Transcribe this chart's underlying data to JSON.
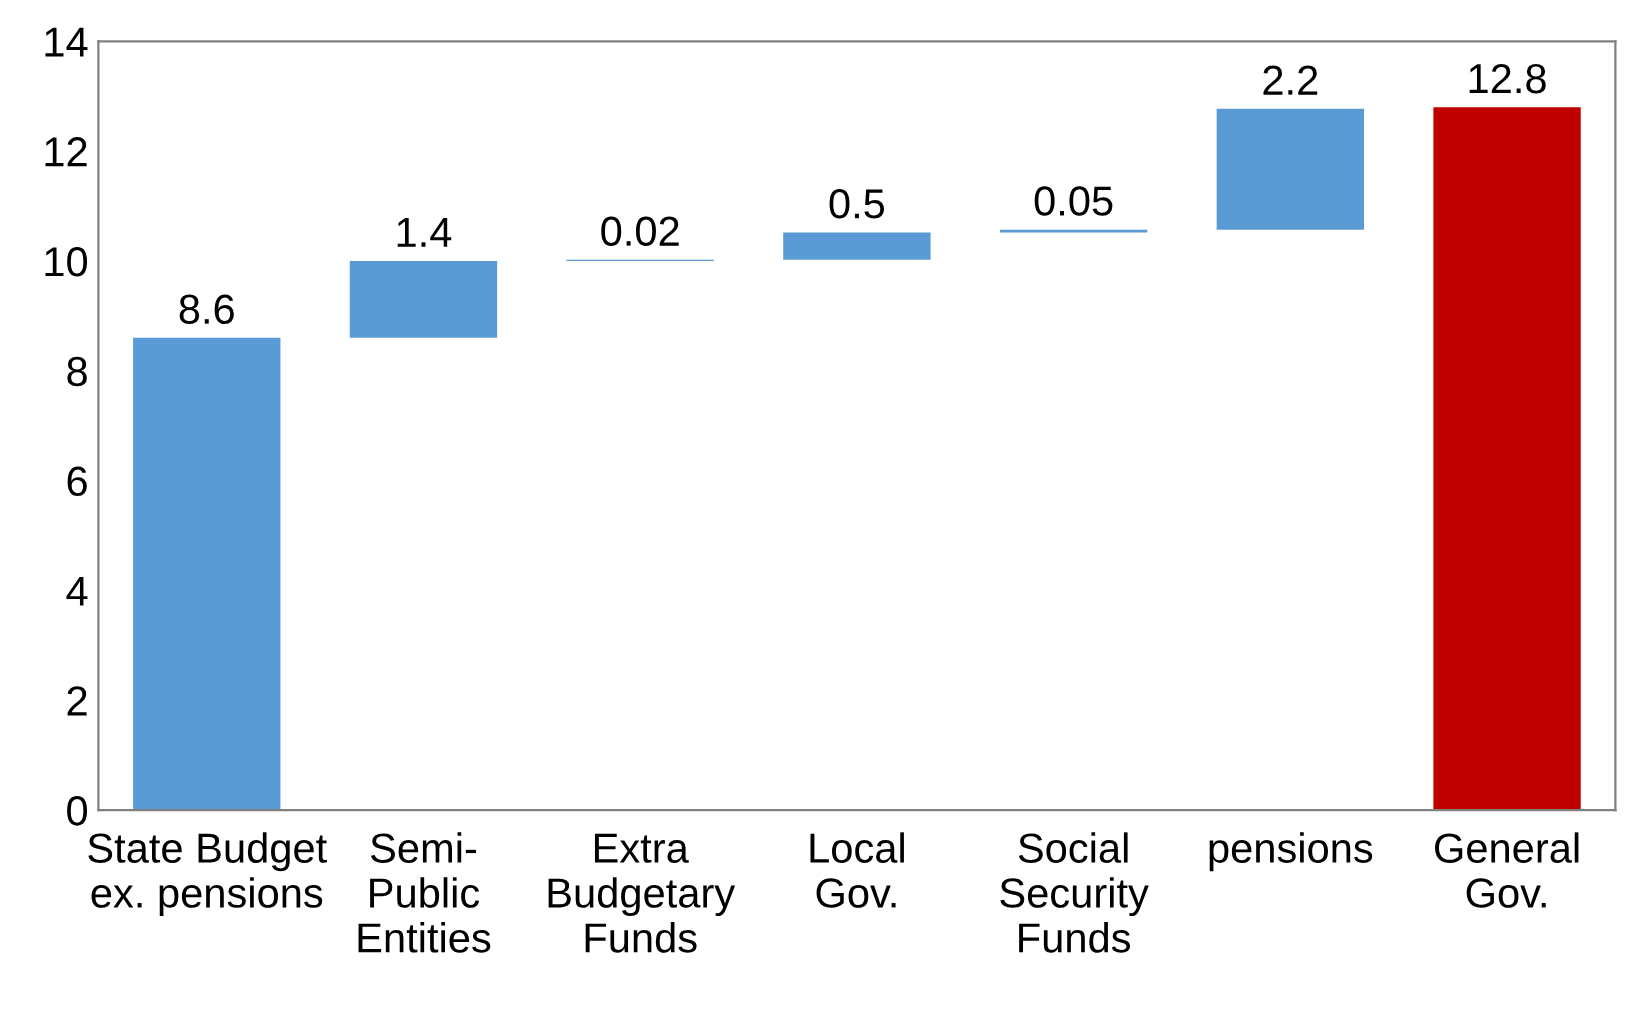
{
  "chart_data": {
    "type": "bar",
    "categories": [
      "State Budget\nex. pensions",
      "Semi-\nPublic\nEntities",
      "Extra\nBudgetary\nFunds",
      "Local\nGov.",
      "Social\nSecurity\nFunds",
      "pensions",
      "General\nGov."
    ],
    "values": [
      8.6,
      1.4,
      0.02,
      0.5,
      0.05,
      2.2,
      12.8
    ],
    "base": [
      0,
      8.6,
      10.0,
      10.02,
      10.52,
      10.57,
      0
    ],
    "colors": [
      "#5b9bd5",
      "#5b9bd5",
      "#5b9bd5",
      "#5b9bd5",
      "#5b9bd5",
      "#5b9bd5",
      "#c00000"
    ],
    "value_labels": [
      "8.6",
      "1.4",
      "0.02",
      "0.5",
      "0.05",
      "2.2",
      "12.8"
    ],
    "ylim": [
      0,
      14
    ],
    "yticks": [
      0,
      2,
      4,
      6,
      8,
      10,
      12,
      14
    ],
    "grid": false
  }
}
